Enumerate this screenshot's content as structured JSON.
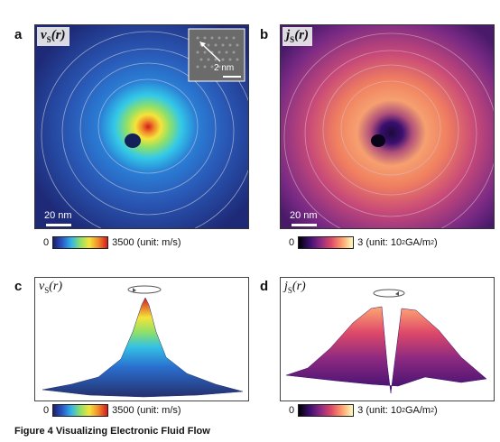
{
  "panels": {
    "a": {
      "letter": "a",
      "var": "v",
      "sub": "S",
      "arg": "(r)",
      "scale": "20 nm",
      "inset_scale": "2 nm"
    },
    "b": {
      "letter": "b",
      "var": "j",
      "sub": "S",
      "arg": "(r)",
      "scale": "20 nm"
    },
    "c": {
      "letter": "c",
      "var": "v",
      "sub": "S",
      "arg": "(r)"
    },
    "d": {
      "letter": "d",
      "var": "j",
      "sub": "S",
      "arg": "(r)"
    }
  },
  "colorbars": {
    "velocity": {
      "min": "0",
      "max": "3500",
      "unit": "(unit: m/s)"
    },
    "current": {
      "min": "0",
      "max": "3",
      "unit_pre": "(unit: 10",
      "unit_exp": "2",
      "unit_mid": "GA/m",
      "unit_exp2": "2",
      "unit_post": ")"
    }
  },
  "caption": "Figure 4 Visualizing Electronic Fluid Flow"
}
